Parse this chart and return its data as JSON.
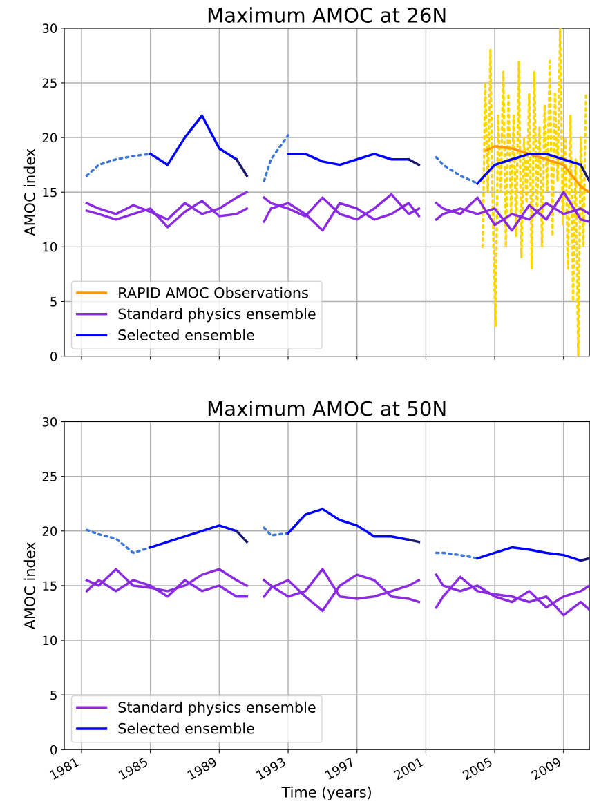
{
  "chart_data": [
    {
      "type": "line",
      "title": "Maximum AMOC at 26N",
      "ylabel": "AMOC index",
      "x": [
        1981.3,
        1982,
        1983,
        1984,
        1985,
        1986,
        1987,
        1988,
        1989,
        1990,
        1990.6,
        1991,
        1991.6,
        1992,
        1993,
        1994,
        1995,
        1996,
        1997,
        1998,
        1999,
        2000,
        2000.6,
        2001,
        2001.6,
        2002,
        2003,
        2004,
        2005,
        2006,
        2007,
        2008,
        2009,
        2010,
        2010.5
      ],
      "xlim": [
        1980,
        2010.5
      ],
      "xticks": [
        1981,
        1985,
        1989,
        1993,
        1997,
        2001,
        2005,
        2009
      ],
      "ylim": [
        0,
        30
      ],
      "yticks": [
        0,
        5,
        10,
        15,
        20,
        25,
        30
      ],
      "tick_labels": "y",
      "grid": true,
      "legend": "bottom left",
      "line_style": "solid",
      "series": [
        {
          "color": "#ffd700",
          "line_style": "dotted",
          "x": [
            2004.3,
            2004.45,
            2004.6,
            2004.75,
            2004.9,
            2005.05,
            2005.2,
            2005.35,
            2005.5,
            2005.65,
            2005.8,
            2005.95,
            2006.1,
            2006.25,
            2006.4,
            2006.55,
            2006.7,
            2006.85,
            2007,
            2007.15,
            2007.3,
            2007.45,
            2007.6,
            2007.75,
            2007.9,
            2008.05,
            2008.2,
            2008.35,
            2008.5,
            2008.65,
            2008.8,
            2008.95,
            2009.1,
            2009.25,
            2009.4,
            2009.55,
            2009.7,
            2009.85,
            2010,
            2010.15,
            2010.3
          ],
          "values": [
            10,
            25,
            15,
            28,
            12,
            2.7,
            22,
            15,
            26,
            10,
            24,
            13,
            22,
            11,
            27,
            9,
            20,
            14,
            24,
            8,
            26,
            13,
            21,
            10,
            23,
            15,
            27,
            11,
            24,
            16,
            30,
            12,
            20,
            8,
            22,
            5,
            18,
            0,
            20,
            10,
            24
          ]
        },
        {
          "name": "RAPID AMOC Observations",
          "color": "#ff9900",
          "x": [
            2004.5,
            2005,
            2006,
            2007,
            2008,
            2009,
            2009.5,
            2010,
            2010.5
          ],
          "values": [
            18.8,
            19.2,
            19,
            18.5,
            18,
            17.5,
            16.5,
            15.5,
            15
          ]
        },
        {
          "name": "Standard physics ensemble",
          "color": "#8a2be2",
          "values": [
            14,
            13.5,
            13,
            13.8,
            13.2,
            12.5,
            14,
            13,
            13.5,
            14.5,
            15,
            null,
            14.5,
            14,
            13.5,
            12.8,
            14.5,
            13,
            12.5,
            13.5,
            14.8,
            13,
            13.5,
            null,
            14,
            13.5,
            13,
            14.5,
            12,
            13,
            12.5,
            14,
            13,
            13.5,
            13
          ]
        },
        {
          "color": "#8a2be2",
          "values": [
            13.3,
            13,
            12.5,
            13,
            13.5,
            11.8,
            13.2,
            14.2,
            12.8,
            13,
            13.5,
            null,
            12.3,
            13.5,
            14,
            13,
            11.5,
            14,
            13.5,
            12.5,
            13,
            14,
            12.8,
            null,
            12.5,
            13,
            13.5,
            13,
            13.5,
            11.5,
            13.8,
            12.5,
            15,
            12.5,
            12.3
          ]
        },
        {
          "color": "#3c78d8",
          "line_style": "dotted",
          "values": [
            16.5,
            17.5,
            18,
            18.3,
            18.5,
            null,
            null,
            null,
            null,
            null,
            null,
            null,
            16,
            18,
            20.2,
            null,
            null,
            null,
            null,
            null,
            null,
            null,
            null,
            null,
            18.2,
            17.5,
            16.5,
            15.8,
            null,
            null,
            null,
            null,
            null,
            null,
            null
          ]
        },
        {
          "name": "Selected ensemble",
          "color": "#0000ff",
          "values": [
            null,
            null,
            null,
            null,
            18.5,
            17.5,
            20,
            22,
            19,
            18,
            null,
            null,
            null,
            null,
            18.5,
            18.5,
            17.8,
            17.5,
            18,
            18.5,
            18,
            18,
            null,
            null,
            null,
            null,
            null,
            15.8,
            17.5,
            18,
            18.5,
            18.5,
            18,
            17.5,
            null
          ]
        },
        {
          "color": "#191970",
          "values": [
            null,
            null,
            null,
            null,
            null,
            null,
            null,
            null,
            null,
            18,
            16.5,
            null,
            null,
            null,
            null,
            null,
            null,
            null,
            null,
            null,
            null,
            18,
            17.5,
            null,
            null,
            null,
            null,
            null,
            null,
            null,
            null,
            null,
            null,
            17.5,
            16
          ]
        }
      ]
    },
    {
      "type": "line",
      "title": "Maximum AMOC at 50N",
      "ylabel": "AMOC index",
      "xlabel": "Time (years)",
      "x": [
        1981.3,
        1982,
        1983,
        1984,
        1985,
        1986,
        1987,
        1988,
        1989,
        1990,
        1990.6,
        1991,
        1991.6,
        1992,
        1993,
        1994,
        1995,
        1996,
        1997,
        1998,
        1999,
        2000,
        2000.6,
        2001,
        2001.6,
        2002,
        2003,
        2004,
        2005,
        2006,
        2007,
        2008,
        2009,
        2010,
        2010.5
      ],
      "xlim": [
        1980,
        2010.5
      ],
      "xticks": [
        1981,
        1985,
        1989,
        1993,
        1997,
        2001,
        2005,
        2009
      ],
      "ylim": [
        0,
        30
      ],
      "yticks": [
        0,
        5,
        10,
        15,
        20,
        25,
        30
      ],
      "grid": true,
      "legend": "bottom left",
      "line_style": "solid",
      "series": [
        {
          "name": "Standard physics ensemble",
          "color": "#8a2be2",
          "values": [
            15.5,
            15,
            16.5,
            15,
            14.8,
            14.5,
            15,
            16,
            16.5,
            15.5,
            15,
            null,
            15.5,
            15,
            14,
            14.5,
            16.5,
            14,
            13.8,
            14,
            14.5,
            15,
            15.5,
            null,
            16,
            15,
            14.5,
            15,
            14,
            13.5,
            14.5,
            13,
            14,
            14.5,
            15
          ]
        },
        {
          "color": "#8a2be2",
          "values": [
            14.5,
            15.5,
            14.5,
            15.5,
            15,
            14,
            15.5,
            14.5,
            15,
            14,
            14,
            null,
            14,
            14.8,
            15.5,
            14,
            12.7,
            15,
            16,
            15.5,
            14,
            13.8,
            13.5,
            null,
            13,
            14,
            15.8,
            14.5,
            14.2,
            14,
            13.5,
            14,
            12.3,
            13.5,
            12.8
          ]
        },
        {
          "color": "#3c78d8",
          "line_style": "dotted",
          "values": [
            20.1,
            19.7,
            19.3,
            18,
            18.5,
            null,
            null,
            null,
            null,
            null,
            null,
            null,
            20.3,
            19.6,
            19.8,
            null,
            null,
            null,
            null,
            null,
            null,
            null,
            null,
            null,
            18,
            18,
            17.8,
            17.5,
            null,
            null,
            null,
            null,
            null,
            null,
            null
          ]
        },
        {
          "name": "Selected ensemble",
          "color": "#0000ff",
          "values": [
            null,
            null,
            null,
            null,
            18.5,
            19,
            19.5,
            20,
            20.5,
            20,
            null,
            null,
            null,
            null,
            19.8,
            21.5,
            22,
            21,
            20.5,
            19.5,
            19.5,
            19.2,
            null,
            null,
            null,
            null,
            null,
            17.5,
            18,
            18.5,
            18.3,
            18,
            17.8,
            17.3,
            null
          ]
        },
        {
          "color": "#191970",
          "values": [
            null,
            null,
            null,
            null,
            null,
            null,
            null,
            null,
            null,
            20,
            19,
            null,
            null,
            null,
            null,
            null,
            null,
            null,
            null,
            null,
            null,
            19.2,
            19,
            null,
            null,
            null,
            null,
            null,
            null,
            null,
            null,
            null,
            null,
            17.3,
            17.5
          ]
        }
      ]
    }
  ]
}
